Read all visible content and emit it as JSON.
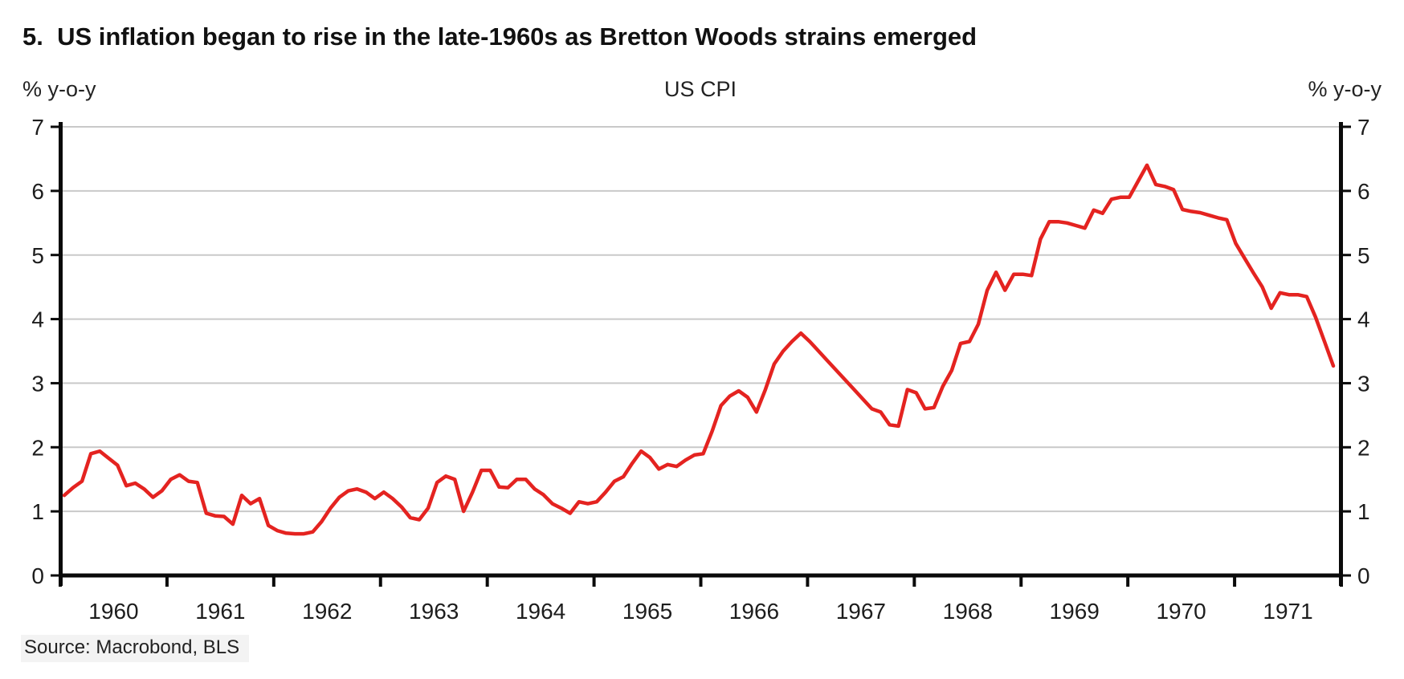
{
  "title": "5.  US inflation began to rise in the late-1960s as Bretton Woods strains emerged",
  "header": {
    "unit_left": "% y-o-y",
    "chart_title": "US CPI",
    "unit_right": "% y-o-y"
  },
  "footer": {
    "source": "Source: Macrobond, BLS"
  },
  "colors": {
    "line": "#e42320",
    "grid": "#c9c9c9",
    "axis": "#0a0a0a",
    "tick_text": "#1d1d1d",
    "background": "#ffffff"
  },
  "chart_data": {
    "type": "line",
    "title": "US CPI",
    "xlabel": "",
    "ylabel_left": "% y-o-y",
    "ylabel_right": "% y-o-y",
    "ylim": [
      0,
      7
    ],
    "yticks": [
      0,
      1,
      2,
      3,
      4,
      5,
      6,
      7
    ],
    "grid": "horizontal",
    "legend": "none",
    "frequency": "monthly",
    "x_start": "1960-01",
    "x_end": "1971-12",
    "year_labels": [
      "1960",
      "1961",
      "1962",
      "1963",
      "1964",
      "1965",
      "1966",
      "1967",
      "1968",
      "1969",
      "1970",
      "1971"
    ],
    "series": [
      {
        "name": "US CPI, % y-o-y",
        "color": "#e42320",
        "values": [
          1.25,
          1.37,
          1.47,
          1.9,
          1.94,
          1.83,
          1.72,
          1.4,
          1.44,
          1.35,
          1.22,
          1.32,
          1.5,
          1.57,
          1.47,
          1.45,
          0.97,
          0.93,
          0.92,
          0.8,
          1.25,
          1.12,
          1.2,
          0.78,
          0.7,
          0.66,
          0.65,
          0.65,
          0.68,
          0.84,
          1.05,
          1.22,
          1.32,
          1.35,
          1.3,
          1.2,
          1.3,
          1.2,
          1.07,
          0.9,
          0.87,
          1.05,
          1.45,
          1.55,
          1.5,
          1.0,
          1.3,
          1.64,
          1.64,
          1.38,
          1.37,
          1.5,
          1.5,
          1.35,
          1.26,
          1.12,
          1.05,
          0.97,
          1.15,
          1.12,
          1.15,
          1.3,
          1.47,
          1.54,
          1.75,
          1.94,
          1.84,
          1.66,
          1.73,
          1.7,
          1.8,
          1.88,
          1.9,
          2.25,
          2.65,
          2.8,
          2.88,
          2.78,
          2.55,
          2.9,
          3.3,
          3.5,
          3.65,
          3.78,
          3.65,
          3.5,
          3.35,
          3.2,
          3.05,
          2.9,
          2.75,
          2.6,
          2.55,
          2.35,
          2.33,
          2.9,
          2.85,
          2.6,
          2.62,
          2.95,
          3.2,
          3.62,
          3.65,
          3.92,
          4.45,
          4.73,
          4.45,
          4.7,
          4.7,
          4.68,
          5.25,
          5.52,
          5.52,
          5.5,
          5.46,
          5.42,
          5.7,
          5.65,
          5.87,
          5.9,
          5.9,
          6.15,
          6.4,
          6.1,
          6.07,
          6.02,
          5.71,
          5.68,
          5.66,
          5.62,
          5.58,
          5.55,
          5.18,
          4.95,
          4.72,
          4.5,
          4.17,
          4.41,
          4.38,
          4.38,
          4.35,
          4.03,
          3.65,
          3.27
        ]
      }
    ]
  }
}
